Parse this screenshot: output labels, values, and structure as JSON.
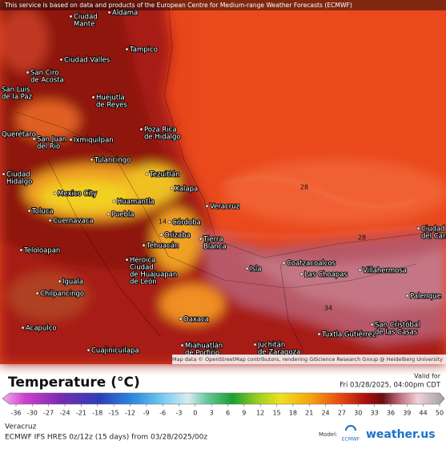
{
  "banner": "This service is based on data and products of the European Centre for Medium-range Weather Forecasts (ECMWF)",
  "map": {
    "labels": [
      {
        "lines": [
          "Aldama"
        ]
      },
      {
        "lines": [
          "Ciudad",
          "Mante"
        ]
      },
      {
        "lines": [
          "Tampico"
        ]
      },
      {
        "lines": [
          "Ciudad Valles"
        ]
      },
      {
        "lines": [
          "San Ciro",
          "de Acosta"
        ]
      },
      {
        "lines": [
          "San Luis",
          "de la Paz"
        ]
      },
      {
        "lines": [
          "Huejutla",
          "de Reyes"
        ]
      },
      {
        "lines": [
          "Querétaro"
        ]
      },
      {
        "lines": [
          "San Juan",
          "del Rio"
        ]
      },
      {
        "lines": [
          "Ixmiquilpan"
        ]
      },
      {
        "lines": [
          "Poza Rica",
          "de Hidalgo"
        ]
      },
      {
        "lines": [
          "Tulancingo"
        ]
      },
      {
        "lines": [
          "Ciudad",
          "Hidalgo"
        ]
      },
      {
        "lines": [
          "Tezuitlán"
        ]
      },
      {
        "lines": [
          "Mexico City"
        ]
      },
      {
        "lines": [
          "Xalapa"
        ]
      },
      {
        "lines": [
          "Huamantla"
        ]
      },
      {
        "lines": [
          "Toluca"
        ]
      },
      {
        "lines": [
          "Cuernavaca"
        ]
      },
      {
        "lines": [
          "Puebla"
        ]
      },
      {
        "lines": [
          "Veracruz"
        ]
      },
      {
        "lines": [
          "Córdoba"
        ]
      },
      {
        "lines": [
          "Orizaba"
        ]
      },
      {
        "lines": [
          "Teloloapan"
        ]
      },
      {
        "lines": [
          "Tehuacán"
        ]
      },
      {
        "lines": [
          "Tierra",
          "Blanca"
        ]
      },
      {
        "lines": [
          "Heroica",
          "Ciudad",
          "de Huajuapan",
          "de León"
        ]
      },
      {
        "lines": [
          "Iguala"
        ]
      },
      {
        "lines": [
          "Isla"
        ]
      },
      {
        "lines": [
          "Coatzacoalcos"
        ]
      },
      {
        "lines": [
          "Las Choapas"
        ]
      },
      {
        "lines": [
          "Villahermosa"
        ]
      },
      {
        "lines": [
          "Ciudad",
          "del Carmen"
        ]
      },
      {
        "lines": [
          "Palenque"
        ]
      },
      {
        "lines": [
          "Chilpancingo"
        ]
      },
      {
        "lines": [
          "Acapulco"
        ]
      },
      {
        "lines": [
          "Oaxaca"
        ]
      },
      {
        "lines": [
          "Miahuatlán",
          "de Porfirio"
        ]
      },
      {
        "lines": [
          "Juchitán",
          "de Zaragoza"
        ]
      },
      {
        "lines": [
          "Tuxtla Gutiérrez"
        ]
      },
      {
        "lines": [
          "San Cristóbal",
          "de las Casas"
        ]
      },
      {
        "lines": [
          "Cuajinicuilapa"
        ]
      }
    ],
    "contour_labels": [
      "28",
      "28",
      "14",
      "34"
    ],
    "attribution": "Map data © OpenStreetMap contributors, rendering GIScience Research Group @ Heidelberg University"
  },
  "legend": {
    "title": "Temperature (°C)",
    "valid_label": "Valid for",
    "valid_time": "Fri 03/28/2025, 04:00pm CDT",
    "ticks": [
      "-36",
      "-30",
      "-27",
      "-24",
      "-21",
      "-18",
      "-15",
      "-12",
      "-9",
      "-6",
      "-3",
      "0",
      "3",
      "6",
      "9",
      "12",
      "15",
      "18",
      "21",
      "24",
      "27",
      "30",
      "33",
      "36",
      "39",
      "44",
      "50"
    ]
  },
  "footer": {
    "region": "Veracruz",
    "model": "ECMWF IFS HRES 0z/12z (15 days) from 03/28/2025/00z",
    "model_label": "Model:",
    "model_name": "ECMWF",
    "brand": "weather.us"
  }
}
